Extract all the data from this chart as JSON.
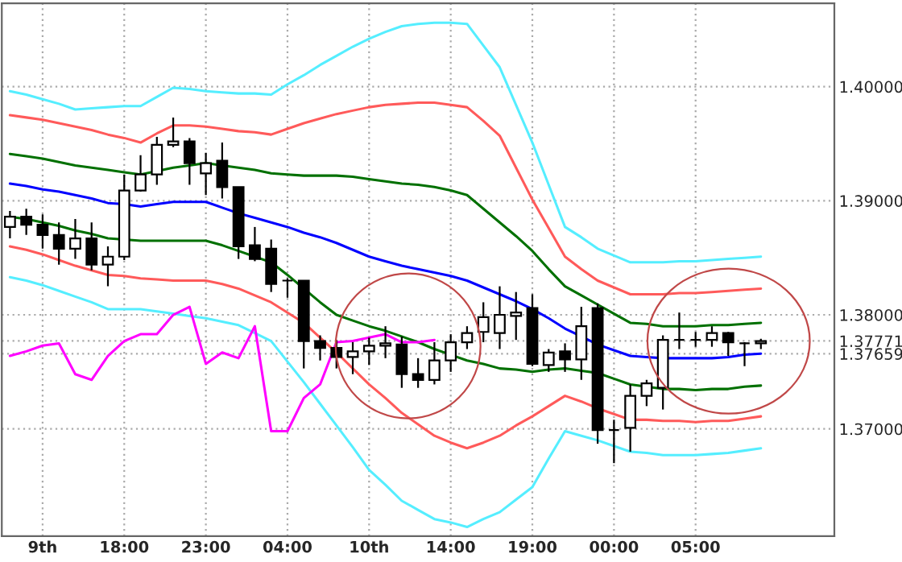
{
  "chart_data": {
    "type": "candlestick",
    "categories": [
      null,
      null,
      "9th",
      null,
      null,
      null,
      null,
      "18:00",
      null,
      null,
      null,
      null,
      "23:00",
      null,
      null,
      null,
      null,
      "04:00",
      null,
      null,
      null,
      null,
      "10th",
      null,
      null,
      null,
      null,
      "14:00",
      null,
      null,
      null,
      null,
      "19:00",
      null,
      null,
      null,
      null,
      "00:00",
      null,
      null,
      null,
      null,
      "05:00",
      null,
      null,
      null,
      null
    ],
    "ohlc": [
      [
        1.3877,
        1.3891,
        1.3867,
        1.3886
      ],
      [
        1.3886,
        1.3893,
        1.387,
        1.3879
      ],
      [
        1.3879,
        1.3888,
        1.3858,
        1.387
      ],
      [
        1.387,
        1.3881,
        1.3844,
        1.3858
      ],
      [
        1.3858,
        1.3884,
        1.3849,
        1.3867
      ],
      [
        1.3867,
        1.3881,
        1.3839,
        1.3844
      ],
      [
        1.3844,
        1.386,
        1.3825,
        1.3851
      ],
      [
        1.3851,
        1.3923,
        1.3848,
        1.3909
      ],
      [
        1.3909,
        1.394,
        1.3908,
        1.3923
      ],
      [
        1.3923,
        1.3956,
        1.3914,
        1.3949
      ],
      [
        1.3949,
        1.3973,
        1.3947,
        1.3952
      ],
      [
        1.3952,
        1.3955,
        1.3914,
        1.3933
      ],
      [
        1.3924,
        1.3942,
        1.3905,
        1.3933
      ],
      [
        1.3935,
        1.3951,
        1.3902,
        1.3912
      ],
      [
        1.3912,
        1.3912,
        1.3849,
        1.386
      ],
      [
        1.3861,
        1.3877,
        1.3847,
        1.3849
      ],
      [
        1.3858,
        1.3866,
        1.382,
        1.3827
      ],
      [
        1.383,
        1.3832,
        1.3815,
        1.383
      ],
      [
        1.383,
        1.383,
        1.3753,
        1.3777
      ],
      [
        1.3777,
        1.3782,
        1.376,
        1.3771
      ],
      [
        1.3771,
        1.3778,
        1.3753,
        1.3763
      ],
      [
        1.3763,
        1.3776,
        1.3748,
        1.3768
      ],
      [
        1.3768,
        1.378,
        1.3756,
        1.3773
      ],
      [
        1.3773,
        1.379,
        1.3762,
        1.3775
      ],
      [
        1.3774,
        1.3781,
        1.3736,
        1.3748
      ],
      [
        1.3748,
        1.3762,
        1.3736,
        1.3743
      ],
      [
        1.3743,
        1.3776,
        1.3739,
        1.376
      ],
      [
        1.376,
        1.3783,
        1.375,
        1.3776
      ],
      [
        1.3776,
        1.379,
        1.377,
        1.3784
      ],
      [
        1.3785,
        1.3811,
        1.3776,
        1.3798
      ],
      [
        1.3784,
        1.3825,
        1.377,
        1.38
      ],
      [
        1.3799,
        1.382,
        1.3778,
        1.3802
      ],
      [
        1.3806,
        1.3818,
        1.3755,
        1.3757
      ],
      [
        1.3756,
        1.377,
        1.375,
        1.3767
      ],
      [
        1.3768,
        1.3775,
        1.375,
        1.3761
      ],
      [
        1.3761,
        1.3807,
        1.3743,
        1.379
      ],
      [
        1.3806,
        1.381,
        1.3687,
        1.3699
      ],
      [
        1.3699,
        1.3708,
        1.367,
        1.3699
      ],
      [
        1.3701,
        1.3739,
        1.368,
        1.3729
      ],
      [
        1.3729,
        1.3743,
        1.372,
        1.374
      ],
      [
        1.3736,
        1.3782,
        1.3717,
        1.3778
      ],
      [
        1.3778,
        1.3802,
        1.377,
        1.3778
      ],
      [
        1.3778,
        1.3785,
        1.3772,
        1.3778
      ],
      [
        1.3778,
        1.379,
        1.3772,
        1.3784
      ],
      [
        1.3784,
        1.3785,
        1.3764,
        1.3776
      ],
      [
        1.3775,
        1.3776,
        1.3755,
        1.3775
      ],
      [
        1.3775,
        1.3779,
        1.377,
        1.3777
      ]
    ],
    "colors": [
      "#ffffff",
      "#000000",
      "#000000",
      "#000000",
      "#ffffff",
      "#000000",
      "#ffffff",
      "#ffffff",
      "#ffffff",
      "#ffffff",
      "#ffffff",
      "#000000",
      "#ffffff",
      "#000000",
      "#000000",
      "#000000",
      "#000000",
      "#000000",
      "#000000",
      "#000000",
      "#000000",
      "#ffffff",
      "#ffffff",
      "#ffffff",
      "#000000",
      "#000000",
      "#ffffff",
      "#ffffff",
      "#ffffff",
      "#ffffff",
      "#ffffff",
      "#ffffff",
      "#000000",
      "#ffffff",
      "#000000",
      "#ffffff",
      "#000000",
      "#000000",
      "#ffffff",
      "#ffffff",
      "#ffffff",
      "#000000",
      "#000000",
      "#ffffff",
      "#000000",
      "#000000",
      "#ffffff"
    ],
    "series": [
      {
        "type": "line",
        "color": "#0000ff",
        "values": [
          1.3915,
          1.3913,
          1.391,
          1.3908,
          1.3905,
          1.3902,
          1.3898,
          1.3897,
          1.3895,
          1.3897,
          1.3899,
          1.3899,
          1.3899,
          1.3894,
          1.3889,
          1.3885,
          1.3881,
          1.3877,
          1.3872,
          1.3868,
          1.3863,
          1.3857,
          1.3851,
          1.3847,
          1.3843,
          1.384,
          1.3837,
          1.3834,
          1.383,
          1.3824,
          1.3818,
          1.3812,
          1.3805,
          1.3797,
          1.3788,
          1.3781,
          1.3774,
          1.3769,
          1.3764,
          1.3763,
          1.3762,
          1.3762,
          1.3762,
          1.3762,
          1.3763,
          1.3765,
          1.3766
        ]
      },
      {
        "type": "line",
        "color": "#007000",
        "values": [
          1.3941,
          1.3939,
          1.3937,
          1.3934,
          1.3931,
          1.3929,
          1.3927,
          1.3925,
          1.3923,
          1.3926,
          1.3929,
          1.3931,
          1.3933,
          1.3931,
          1.3929,
          1.3927,
          1.3924,
          1.3923,
          1.3922,
          1.3922,
          1.3922,
          1.3921,
          1.3919,
          1.3917,
          1.3915,
          1.3914,
          1.3912,
          1.3909,
          1.3905,
          1.3893,
          1.3881,
          1.3869,
          1.3856,
          1.384,
          1.3825,
          1.3817,
          1.3809,
          1.3801,
          1.3793,
          1.3792,
          1.379,
          1.379,
          1.379,
          1.3791,
          1.3791,
          1.3792,
          1.3793
        ]
      },
      {
        "type": "line",
        "color": "#007000",
        "values": [
          1.3886,
          1.3884,
          1.3881,
          1.3878,
          1.3874,
          1.3871,
          1.3867,
          1.3866,
          1.3865,
          1.3865,
          1.3865,
          1.3865,
          1.3865,
          1.3861,
          1.3856,
          1.3851,
          1.3846,
          1.3835,
          1.3823,
          1.3811,
          1.38,
          1.3795,
          1.379,
          1.3786,
          1.3781,
          1.3776,
          1.377,
          1.3765,
          1.376,
          1.3757,
          1.3753,
          1.3752,
          1.375,
          1.3752,
          1.3753,
          1.3751,
          1.3749,
          1.3744,
          1.3739,
          1.3737,
          1.3735,
          1.3735,
          1.3734,
          1.3735,
          1.3735,
          1.3737,
          1.3738
        ]
      },
      {
        "type": "line",
        "color": "#ff5a5a",
        "values": [
          1.3975,
          1.3973,
          1.3971,
          1.3968,
          1.3965,
          1.3962,
          1.3958,
          1.3955,
          1.3951,
          1.3959,
          1.3966,
          1.3966,
          1.3965,
          1.3963,
          1.3961,
          1.396,
          1.3958,
          1.3963,
          1.3968,
          1.3972,
          1.3976,
          1.3979,
          1.3982,
          1.3984,
          1.3985,
          1.3986,
          1.3986,
          1.3984,
          1.3982,
          1.397,
          1.3957,
          1.3929,
          1.3901,
          1.3876,
          1.3851,
          1.384,
          1.383,
          1.3824,
          1.3818,
          1.3818,
          1.3818,
          1.3819,
          1.3819,
          1.382,
          1.3821,
          1.3822,
          1.3823
        ]
      },
      {
        "type": "line",
        "color": "#ff5a5a",
        "values": [
          1.386,
          1.3857,
          1.3853,
          1.3848,
          1.3843,
          1.3839,
          1.3835,
          1.3834,
          1.3832,
          1.3831,
          1.383,
          1.383,
          1.383,
          1.3827,
          1.3823,
          1.3817,
          1.3811,
          1.3802,
          1.3793,
          1.378,
          1.3767,
          1.3753,
          1.3739,
          1.3727,
          1.3714,
          1.3704,
          1.3694,
          1.3688,
          1.3683,
          1.3688,
          1.3694,
          1.3703,
          1.3711,
          1.372,
          1.3729,
          1.3724,
          1.3718,
          1.3713,
          1.3708,
          1.3708,
          1.3707,
          1.3707,
          1.3706,
          1.3707,
          1.3707,
          1.3709,
          1.3711
        ]
      },
      {
        "type": "line",
        "color": "#55eeff",
        "values": [
          1.3996,
          1.3993,
          1.3989,
          1.3985,
          1.398,
          1.3981,
          1.3982,
          1.3983,
          1.3983,
          1.3991,
          1.3999,
          1.3998,
          1.3996,
          1.3995,
          1.3994,
          1.3994,
          1.3993,
          1.4002,
          1.401,
          1.4019,
          1.4027,
          1.4035,
          1.4042,
          1.4048,
          1.4053,
          1.4055,
          1.4056,
          1.4056,
          1.4055,
          1.4036,
          1.4017,
          1.3984,
          1.3951,
          1.3914,
          1.3877,
          1.3868,
          1.3858,
          1.3852,
          1.3846,
          1.3846,
          1.3846,
          1.3847,
          1.3847,
          1.3848,
          1.3849,
          1.385,
          1.3851
        ]
      },
      {
        "type": "line",
        "color": "#55eeff",
        "values": [
          1.3833,
          1.383,
          1.3826,
          1.3821,
          1.3816,
          1.3811,
          1.3805,
          1.3805,
          1.3805,
          1.3803,
          1.3801,
          1.3799,
          1.3797,
          1.3794,
          1.3791,
          1.3784,
          1.3777,
          1.3759,
          1.3741,
          1.3722,
          1.3703,
          1.3684,
          1.3664,
          1.3651,
          1.3637,
          1.3629,
          1.3621,
          1.3618,
          1.3614,
          1.3621,
          1.3627,
          1.3638,
          1.3649,
          1.3674,
          1.3698,
          1.3694,
          1.369,
          1.3685,
          1.368,
          1.3679,
          1.3677,
          1.3677,
          1.3677,
          1.3678,
          1.3679,
          1.3681,
          1.3683
        ]
      },
      {
        "type": "line",
        "color": "#ff00ff",
        "values": [
          1.3764,
          1.3768,
          1.3773,
          1.3775,
          1.3748,
          1.3743,
          1.3764,
          1.3777,
          1.3783,
          1.3783,
          1.38,
          1.3807,
          1.3757,
          1.3767,
          1.3762,
          1.379,
          1.3698,
          1.3698,
          1.3727,
          1.3739,
          1.3776,
          1.3777,
          1.378,
          1.3783,
          1.3776,
          1.3776,
          1.3778,
          null,
          null,
          null,
          null,
          null,
          null,
          null,
          null,
          null,
          null,
          null,
          null,
          null,
          null,
          null,
          null,
          null,
          null,
          null,
          null
        ]
      }
    ],
    "ylim": [
      1.3606,
      1.4073
    ],
    "yticks": [
      {
        "value": 1.37,
        "label": "1.37000"
      },
      {
        "value": 1.37659,
        "label": "1.37659"
      },
      {
        "value": 1.37771,
        "label": "1.37771"
      },
      {
        "value": 1.38,
        "label": "1.38000"
      },
      {
        "value": 1.39,
        "label": "1.39000"
      },
      {
        "value": 1.4,
        "label": "1.40000"
      }
    ],
    "grid": true,
    "legend": false
  }
}
